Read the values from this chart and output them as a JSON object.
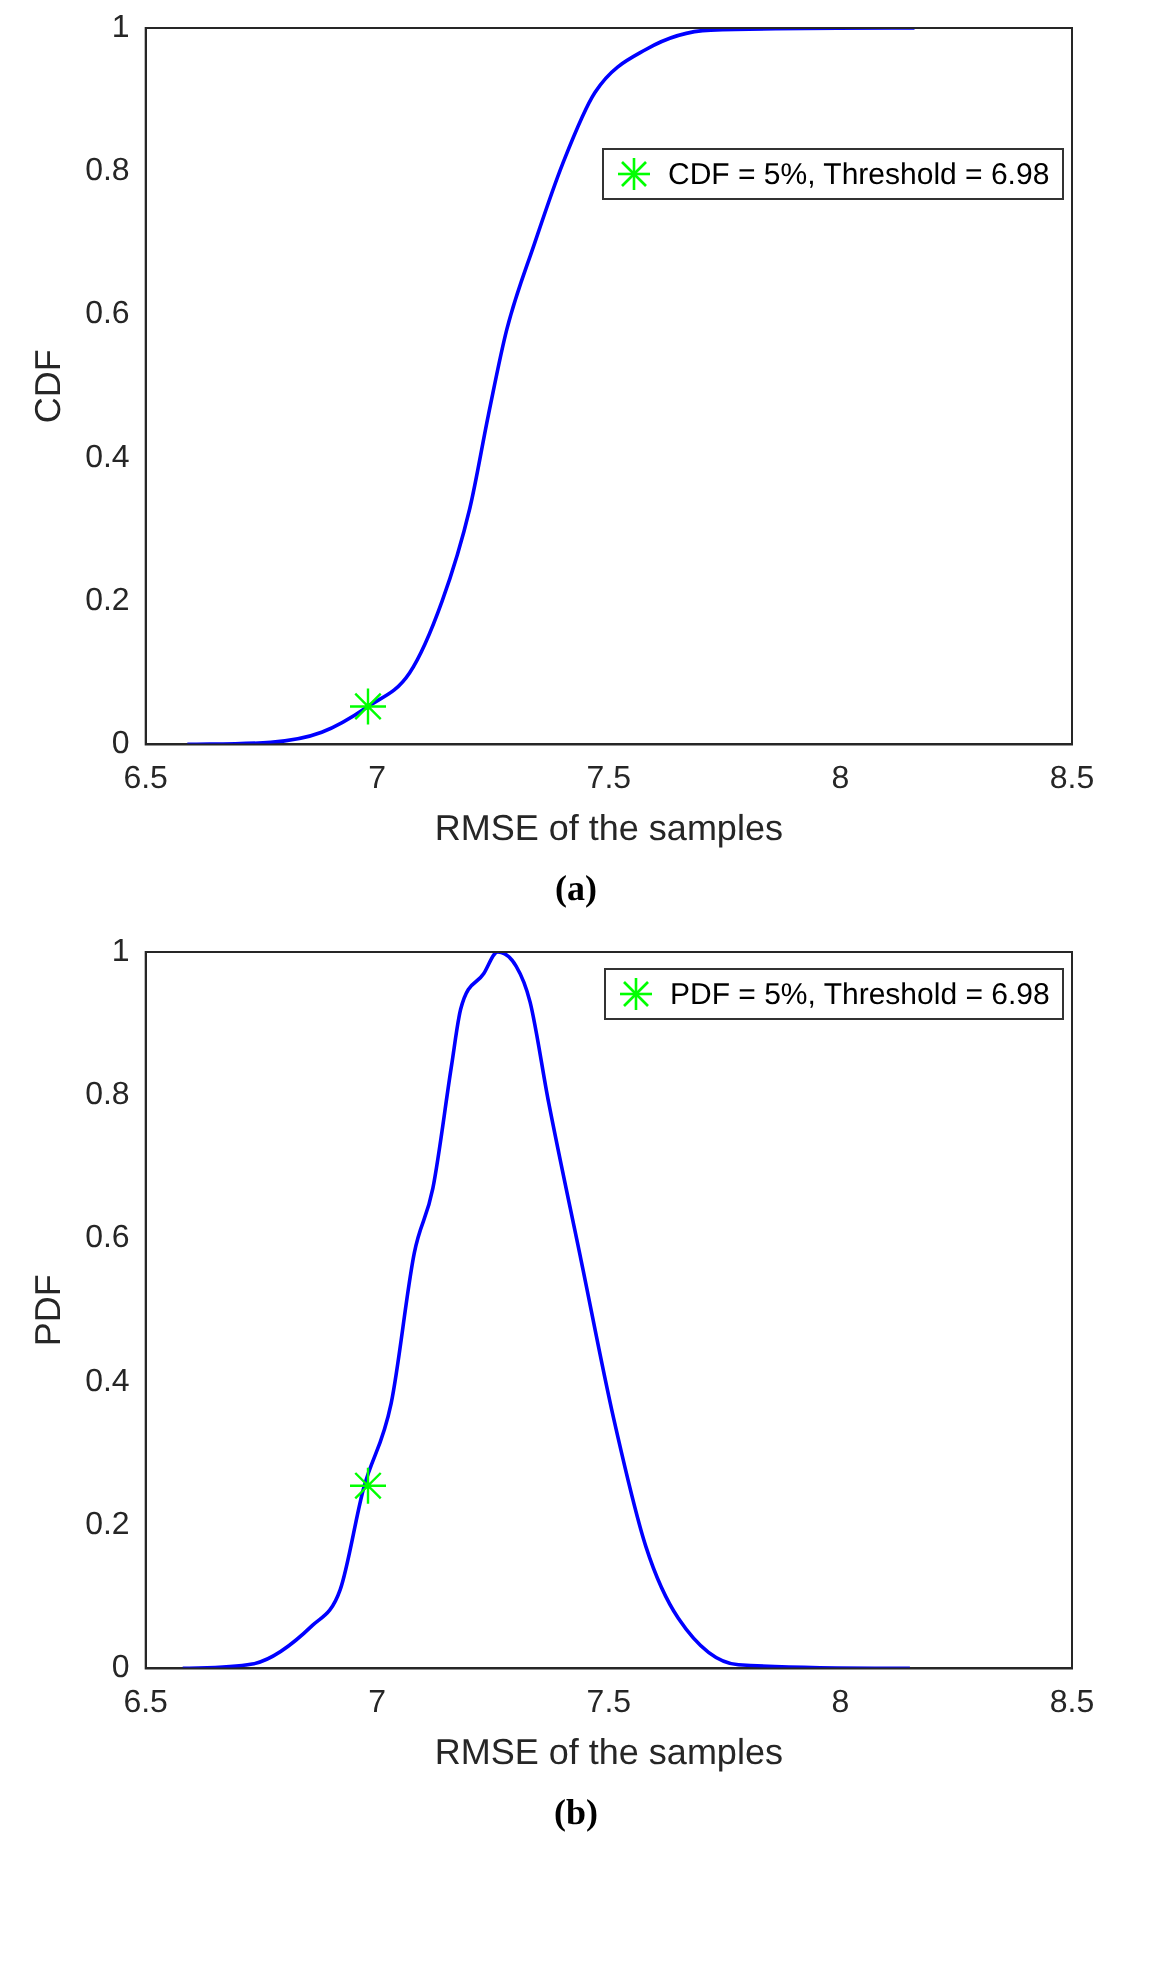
{
  "chart_data": [
    {
      "type": "line",
      "xlabel": "RMSE of the samples",
      "ylabel": "CDF",
      "xlim": [
        6.5,
        8.5
      ],
      "xticks": [
        6.5,
        7,
        7.5,
        8,
        8.5
      ],
      "ylim": [
        0,
        1
      ],
      "yticks": [
        0,
        0.2,
        0.4,
        0.6,
        0.8,
        1
      ],
      "grid": false,
      "legend": "top right",
      "annotations": [
        "(a)"
      ],
      "series": [
        {
          "color": "#0000ff",
          "x": [
            6.59,
            6.77,
            6.88,
            6.98,
            7.07,
            7.14,
            7.2,
            7.24,
            7.28,
            7.34,
            7.4,
            7.47,
            7.58,
            7.72,
            8.16
          ],
          "values": [
            0,
            0.003,
            0.017,
            0.053,
            0.1,
            0.2,
            0.33,
            0.46,
            0.58,
            0.7,
            0.81,
            0.91,
            0.97,
            0.997,
            1
          ]
        },
        {
          "type": "scatter",
          "name": "CDF = 5%, Threshold = 6.98",
          "color": "#00ff00",
          "marker": "cross",
          "x": [
            6.98
          ],
          "values": [
            0.053
          ]
        }
      ]
    },
    {
      "type": "line",
      "xlabel": "RMSE of the samples",
      "ylabel": "PDF",
      "xlim": [
        6.5,
        8.5
      ],
      "xticks": [
        6.5,
        7,
        7.5,
        8,
        8.5
      ],
      "ylim": [
        0,
        1
      ],
      "yticks": [
        0,
        0.2,
        0.4,
        0.6,
        0.8,
        1
      ],
      "grid": false,
      "legend": "top right",
      "annotations": [
        "(b)"
      ],
      "series": [
        {
          "color": "#0000ff",
          "x": [
            6.58,
            6.73,
            6.86,
            6.92,
            6.97,
            7.03,
            7.08,
            7.12,
            7.16,
            7.18,
            7.23,
            7.26,
            7.3,
            7.33,
            7.37,
            7.44,
            7.51,
            7.58,
            7.65,
            7.78,
            8.15
          ],
          "values": [
            0,
            0.006,
            0.06,
            0.11,
            0.25,
            0.37,
            0.58,
            0.67,
            0.84,
            0.92,
            0.97,
            1,
            0.98,
            0.93,
            0.79,
            0.57,
            0.35,
            0.17,
            0.07,
            0.005,
            0
          ]
        },
        {
          "type": "scatter",
          "name": "PDF = 5%, Threshold = 6.98",
          "color": "#00ff00",
          "marker": "cross",
          "x": [
            6.98
          ],
          "values": [
            0.255
          ]
        }
      ]
    }
  ]
}
